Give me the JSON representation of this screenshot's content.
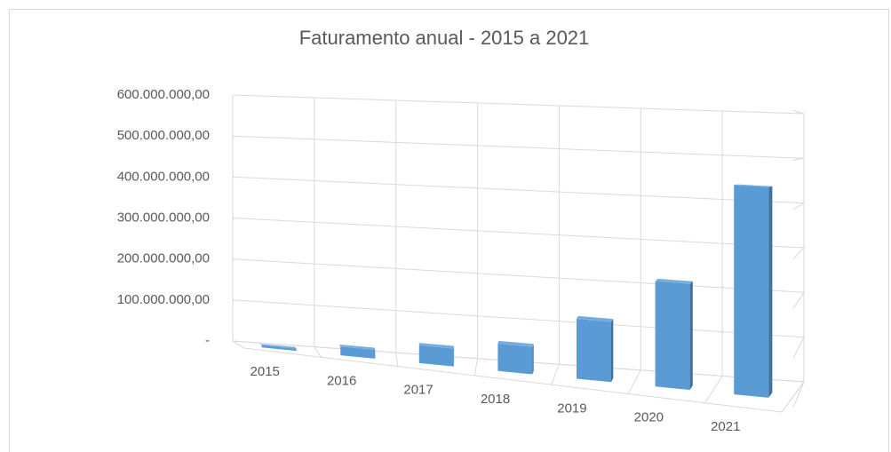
{
  "chart_data": {
    "type": "bar3d",
    "title": "Faturamento anual - 2015 a 2021",
    "categories": [
      "2015",
      "2016",
      "2017",
      "2018",
      "2019",
      "2020",
      "2021"
    ],
    "values": [
      5000000,
      20000000,
      40000000,
      60000000,
      130000000,
      225000000,
      440000000
    ],
    "color": "#5b9bd5",
    "ylim": [
      0,
      600000000
    ],
    "yticks": [
      {
        "value": 0,
        "label": "-"
      },
      {
        "value": 100000000,
        "label": "100.000.000,00"
      },
      {
        "value": 200000000,
        "label": "200.000.000,00"
      },
      {
        "value": 300000000,
        "label": "300.000.000,00"
      },
      {
        "value": 400000000,
        "label": "400.000.000,00"
      },
      {
        "value": 500000000,
        "label": "500.000.000,00"
      },
      {
        "value": 600000000,
        "label": "600.000.000,00"
      }
    ],
    "grid": true
  }
}
